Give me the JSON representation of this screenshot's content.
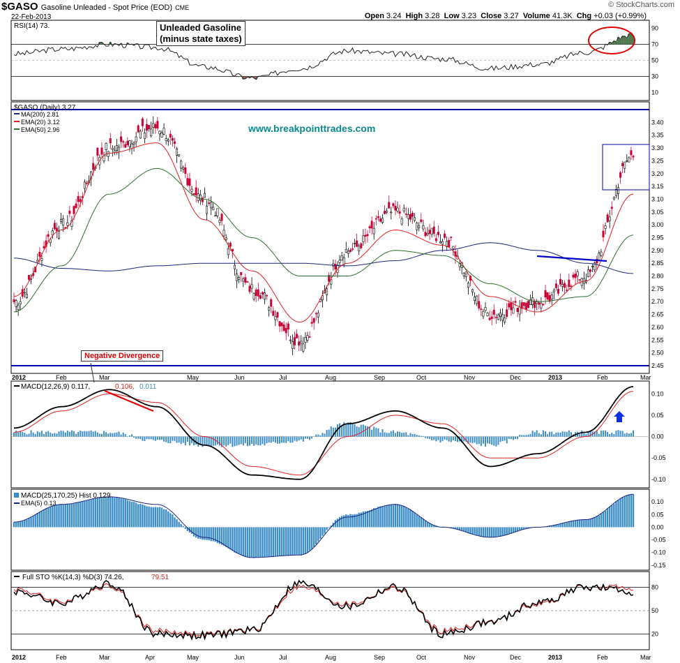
{
  "header": {
    "symbol": "$GASO",
    "title": "Gasoline Unleaded - Spot Price (EOD)",
    "exchange": "CME",
    "date": "22-Feb-2013",
    "open": "3.24",
    "high": "3.28",
    "low": "3.23",
    "close": "3.27",
    "volume": "41.3K",
    "change": "+0.03 (+0.99%)",
    "open_label": "Open",
    "high_label": "High",
    "low_label": "Low",
    "close_label": "Close",
    "volume_label": "Volume",
    "chg_label": "Chg",
    "logo": "© StockCharts.com"
  },
  "annotations": {
    "note_line1": "Unleaded Gasoline",
    "note_line2": "(minus state taxes)",
    "website": "www.breakpointtrades.com",
    "divergence": "Negative Divergence"
  },
  "legends": {
    "rsi": "RSI(14) 73.",
    "price": "$GASO (Daily) 3.27",
    "ma200": "MA(200) 2.81",
    "ema20": "EMA(20) 3.12",
    "ema50": "EMA(50) 2.96",
    "macd1": "MACD(12,26,9) 0.117,",
    "macd1_sig": "0.106,",
    "macd1_hist": "0.011",
    "macd2": "MACD(25,170,25) Hist 0.129",
    "macd2_ema": "EMA(5) 0.13",
    "sto": "Full STO %K(14,3) %D(3) 74.26,",
    "sto_d": "79.51"
  },
  "colors": {
    "up": "#000000",
    "down": "#cc0033",
    "ema20": "#e02020",
    "ema50": "#2f6f2f",
    "ma200": "#1a237e",
    "hist": "#3d8dc8",
    "hline": "#0000aa",
    "rsi_fill_high": "#4f7a4f",
    "rsi_fill_low": "#8b5a4a",
    "circle": "#e00000",
    "website": "#0a8a8a"
  },
  "chart_data": [
    {
      "type": "line",
      "panel": "rsi",
      "title": "RSI(14)",
      "ylim": [
        0,
        100
      ],
      "y_ticks": [
        10,
        30,
        50,
        70,
        90
      ],
      "x": [
        "Jan-2012",
        "Feb",
        "Mar",
        "Apr",
        "May",
        "Jun",
        "Jul",
        "Aug",
        "Sep",
        "Oct",
        "Nov",
        "Dec",
        "Jan-2013",
        "Feb"
      ],
      "series": [
        {
          "name": "RSI(14)",
          "values": [
            58,
            64,
            70,
            66,
            42,
            28,
            40,
            62,
            58,
            52,
            40,
            45,
            60,
            82
          ]
        }
      ]
    },
    {
      "type": "candlestick",
      "panel": "price",
      "title": "$GASO (Daily)",
      "ylim": [
        2.45,
        3.45
      ],
      "y_ticks": [
        2.45,
        2.5,
        2.55,
        2.6,
        2.65,
        2.7,
        2.75,
        2.8,
        2.85,
        2.9,
        2.95,
        3.0,
        3.05,
        3.1,
        3.15,
        3.2,
        3.25,
        3.3,
        3.35,
        3.4
      ],
      "x_labels": [
        "2012",
        "Feb",
        "Mar",
        "May",
        "Jun",
        "Jul",
        "Aug",
        "Sep",
        "Oct",
        "Nov",
        "Dec",
        "2013",
        "Feb",
        "Mar"
      ],
      "horizontal_lines": [
        3.45,
        2.45
      ],
      "close_by_month": {
        "months": [
          "Jan-2012",
          "Feb",
          "Mar",
          "Apr",
          "May",
          "Jun",
          "Jul",
          "Aug",
          "Sep",
          "Oct",
          "Nov",
          "Dec",
          "Jan-2013",
          "Feb"
        ],
        "values": [
          2.7,
          3.0,
          3.3,
          3.38,
          3.1,
          2.75,
          2.55,
          2.9,
          3.05,
          2.95,
          2.65,
          2.7,
          2.8,
          3.27
        ]
      },
      "series": [
        {
          "name": "MA(200)",
          "values": [
            2.87,
            2.83,
            2.82,
            2.84,
            2.85,
            2.85,
            2.85,
            2.84,
            2.86,
            2.9,
            2.93,
            2.9,
            2.85,
            2.81
          ]
        },
        {
          "name": "EMA(20)",
          "values": [
            2.72,
            2.98,
            3.28,
            3.32,
            3.02,
            2.82,
            2.62,
            2.85,
            2.98,
            2.92,
            2.72,
            2.66,
            2.78,
            3.12
          ]
        },
        {
          "name": "EMA(50)",
          "values": [
            2.66,
            2.84,
            3.12,
            3.22,
            3.1,
            2.95,
            2.8,
            2.8,
            2.9,
            2.88,
            2.77,
            2.7,
            2.72,
            2.96
          ]
        }
      ]
    },
    {
      "type": "line",
      "panel": "macd_12_26_9",
      "title": "MACD(12,26,9)",
      "ylim": [
        -0.1,
        0.1
      ],
      "y_ticks": [
        -0.1,
        -0.05,
        0.0,
        0.05,
        0.1
      ],
      "series": [
        {
          "name": "MACD",
          "values": [
            0.02,
            0.07,
            0.11,
            0.07,
            -0.02,
            -0.09,
            -0.1,
            0.03,
            0.06,
            0.02,
            -0.07,
            -0.04,
            0.01,
            0.117
          ]
        },
        {
          "name": "Signal",
          "values": [
            0.01,
            0.06,
            0.1,
            0.08,
            0.0,
            -0.07,
            -0.09,
            0.0,
            0.05,
            0.03,
            -0.05,
            -0.05,
            0.0,
            0.106
          ]
        },
        {
          "name": "Histogram",
          "values": [
            0.01,
            0.01,
            0.01,
            -0.01,
            -0.02,
            -0.02,
            -0.01,
            0.03,
            0.01,
            -0.01,
            -0.02,
            0.01,
            0.01,
            0.011
          ]
        }
      ]
    },
    {
      "type": "bar",
      "panel": "macd_25_170_25",
      "title": "MACD(25,170,25) Hist",
      "ylim": [
        -0.15,
        0.15
      ],
      "y_ticks": [
        -0.15,
        -0.1,
        -0.05,
        0.0,
        0.05,
        0.1
      ],
      "series": [
        {
          "name": "Hist",
          "values": [
            0.02,
            0.09,
            0.12,
            0.08,
            -0.05,
            -0.12,
            -0.11,
            0.05,
            0.09,
            0.0,
            -0.04,
            0.0,
            0.03,
            0.129
          ]
        },
        {
          "name": "EMA(5)",
          "values": [
            0.02,
            0.09,
            0.12,
            0.09,
            -0.04,
            -0.12,
            -0.11,
            0.04,
            0.09,
            0.0,
            -0.04,
            0.0,
            0.03,
            0.13
          ]
        }
      ]
    },
    {
      "type": "line",
      "panel": "full_sto",
      "title": "Full STO %K(14,3) %D(3)",
      "ylim": [
        0,
        100
      ],
      "y_ticks": [
        20,
        50,
        80
      ],
      "x_labels": [
        "2012",
        "Feb",
        "Mar",
        "Apr",
        "May",
        "Jun",
        "Jul",
        "Aug",
        "Sep",
        "Oct",
        "Nov",
        "Dec",
        "2013",
        "Feb",
        "Mar"
      ],
      "series": [
        {
          "name": "%K",
          "values": [
            75,
            60,
            85,
            20,
            18,
            25,
            85,
            55,
            80,
            20,
            35,
            60,
            80,
            74.26
          ]
        },
        {
          "name": "%D",
          "values": [
            78,
            62,
            82,
            24,
            20,
            26,
            80,
            58,
            78,
            24,
            36,
            58,
            80,
            79.51
          ]
        }
      ]
    }
  ]
}
